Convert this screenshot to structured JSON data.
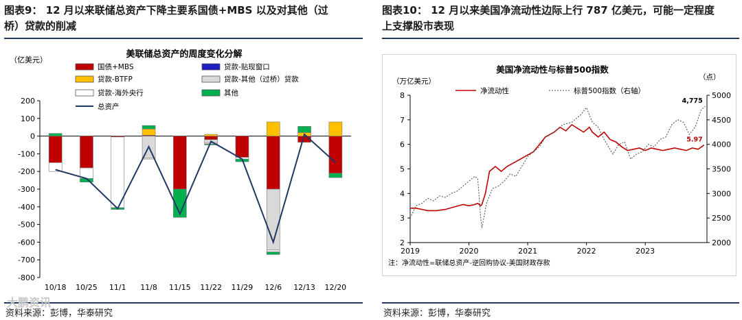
{
  "left": {
    "heading_line1": "图表9：  12 月以来联储总资产下降主要系国债+MBS  以及对其他（过",
    "heading_line2": "桥）贷款的削减",
    "source": "资料来源：彭博，华泰研究",
    "watermark": "大鹏资讯"
  },
  "right": {
    "heading_line1": "图表10：  12 月以来美国净流动性边际上行 787 亿美元，可能一定程度",
    "heading_line2": "上支撑股市表现",
    "source": "资料来源：彭博，华泰研究"
  },
  "chart_data": [
    {
      "type": "bar",
      "stacked": true,
      "title": "美联储总资产的周度变化分解",
      "ylabel": "（亿美元）",
      "ylim": [
        -800,
        200
      ],
      "yticks": [
        200,
        100,
        0,
        -100,
        -200,
        -300,
        -400,
        -500,
        -600,
        -700,
        -800
      ],
      "categories": [
        "10/18",
        "10/25",
        "11/1",
        "11/8",
        "11/15",
        "11/22",
        "11/29",
        "12/6",
        "12/13",
        "12/20"
      ],
      "series": [
        {
          "name": "国债+MBS",
          "color": "#c00000",
          "values": [
            -150,
            -180,
            -5,
            5,
            -300,
            -20,
            -120,
            -300,
            -35,
            -210
          ]
        },
        {
          "name": "贷款-贴现窗口",
          "color": "#1f1fbf",
          "values": [
            0,
            0,
            0,
            0,
            0,
            0,
            0,
            0,
            0,
            0
          ]
        },
        {
          "name": "贷款-BTFP",
          "color": "#ffc000",
          "values": [
            0,
            0,
            0,
            35,
            0,
            10,
            0,
            80,
            20,
            80
          ]
        },
        {
          "name": "贷款-其他（过桥）贷款",
          "color": "#d9d9d9",
          "values": [
            0,
            0,
            0,
            -125,
            0,
            -20,
            0,
            -345,
            0,
            0
          ]
        },
        {
          "name": "贷款-海外央行",
          "color": "#ffffff",
          "values": [
            -50,
            -60,
            -400,
            -5,
            0,
            -5,
            -10,
            -10,
            0,
            0
          ]
        },
        {
          "name": "其他",
          "color": "#00b050",
          "values": [
            15,
            -20,
            -10,
            20,
            -160,
            -5,
            -15,
            -15,
            35,
            -25
          ]
        }
      ],
      "line": {
        "name": "总资产",
        "color": "#1f3864",
        "values": [
          -190,
          -240,
          -410,
          -60,
          -440,
          -30,
          -130,
          -600,
          10,
          -150
        ]
      }
    },
    {
      "type": "line",
      "title": "美国净流动性与标普500指数",
      "ylabel_left": "（万亿美元）",
      "ylabel_right": "（点）",
      "ylim_left": [
        2,
        8
      ],
      "ylim_right": [
        2000,
        5000
      ],
      "yticks_left": [
        2,
        3,
        4,
        5,
        6,
        7,
        8
      ],
      "yticks_right": [
        2000,
        2500,
        3000,
        3500,
        4000,
        4500,
        5000
      ],
      "xlim": [
        2019,
        2024.05
      ],
      "xticks": [
        2019,
        2020,
        2021,
        2022,
        2023
      ],
      "series": [
        {
          "name": "净流动性",
          "color": "#c00000",
          "axis": "left",
          "style": "solid",
          "x": [
            2019.0,
            2019.1,
            2019.2,
            2019.3,
            2019.45,
            2019.6,
            2019.75,
            2019.9,
            2020.0,
            2020.1,
            2020.15,
            2020.2,
            2020.22,
            2020.28,
            2020.35,
            2020.45,
            2020.55,
            2020.65,
            2020.8,
            2020.95,
            2021.1,
            2021.2,
            2021.3,
            2021.45,
            2021.55,
            2021.65,
            2021.75,
            2021.85,
            2021.95,
            2022.05,
            2022.1,
            2022.2,
            2022.3,
            2022.4,
            2022.5,
            2022.6,
            2022.7,
            2022.8,
            2022.9,
            2023.0,
            2023.1,
            2023.2,
            2023.3,
            2023.4,
            2023.5,
            2023.6,
            2023.7,
            2023.8,
            2023.9,
            2024.0
          ],
          "y": [
            3.4,
            3.4,
            3.35,
            3.3,
            3.3,
            3.35,
            3.45,
            3.55,
            3.5,
            3.55,
            3.6,
            3.5,
            3.55,
            4.0,
            4.9,
            5.1,
            4.9,
            5.1,
            5.3,
            5.5,
            5.7,
            6.0,
            6.3,
            6.5,
            6.7,
            6.55,
            6.8,
            6.65,
            6.5,
            6.7,
            6.5,
            6.3,
            6.5,
            6.2,
            6.1,
            5.9,
            5.75,
            5.8,
            5.85,
            5.75,
            5.85,
            5.8,
            5.75,
            5.8,
            5.85,
            5.8,
            5.75,
            5.85,
            5.8,
            5.97
          ]
        },
        {
          "name": "标普500指数（右轴）",
          "color": "#444444",
          "axis": "right",
          "style": "dashed",
          "x": [
            2019.0,
            2019.1,
            2019.2,
            2019.3,
            2019.4,
            2019.5,
            2019.6,
            2019.7,
            2019.8,
            2019.9,
            2020.0,
            2020.1,
            2020.15,
            2020.2,
            2020.22,
            2020.3,
            2020.4,
            2020.5,
            2020.6,
            2020.7,
            2020.8,
            2020.9,
            2021.0,
            2021.1,
            2021.2,
            2021.3,
            2021.45,
            2021.6,
            2021.75,
            2021.9,
            2022.0,
            2022.1,
            2022.2,
            2022.3,
            2022.45,
            2022.55,
            2022.65,
            2022.75,
            2022.85,
            2022.95,
            2023.05,
            2023.15,
            2023.25,
            2023.35,
            2023.45,
            2023.55,
            2023.65,
            2023.75,
            2023.85,
            2023.95,
            2024.02
          ],
          "y": [
            2500,
            2750,
            2800,
            2900,
            2850,
            2950,
            2920,
            3000,
            3050,
            3150,
            3250,
            3350,
            3300,
            2500,
            2300,
            2800,
            3100,
            3150,
            3250,
            3400,
            3350,
            3550,
            3750,
            3850,
            3950,
            4150,
            4250,
            4400,
            4450,
            4600,
            4750,
            4450,
            4350,
            4100,
            3800,
            4000,
            4050,
            3700,
            3800,
            3850,
            4000,
            3950,
            4100,
            4150,
            4400,
            4500,
            4450,
            4200,
            4350,
            4700,
            4775
          ]
        }
      ],
      "annotations": [
        {
          "text": "4,775",
          "x": 2024.0,
          "y": 4775,
          "axis": "right",
          "color": "#000000"
        },
        {
          "text": "5.97",
          "x": 2024.0,
          "y": 5.97,
          "axis": "left",
          "color": "#c00000"
        }
      ],
      "footnote": "注：净流动性=联储总资产-逆回购协议-美国财政存款"
    }
  ]
}
